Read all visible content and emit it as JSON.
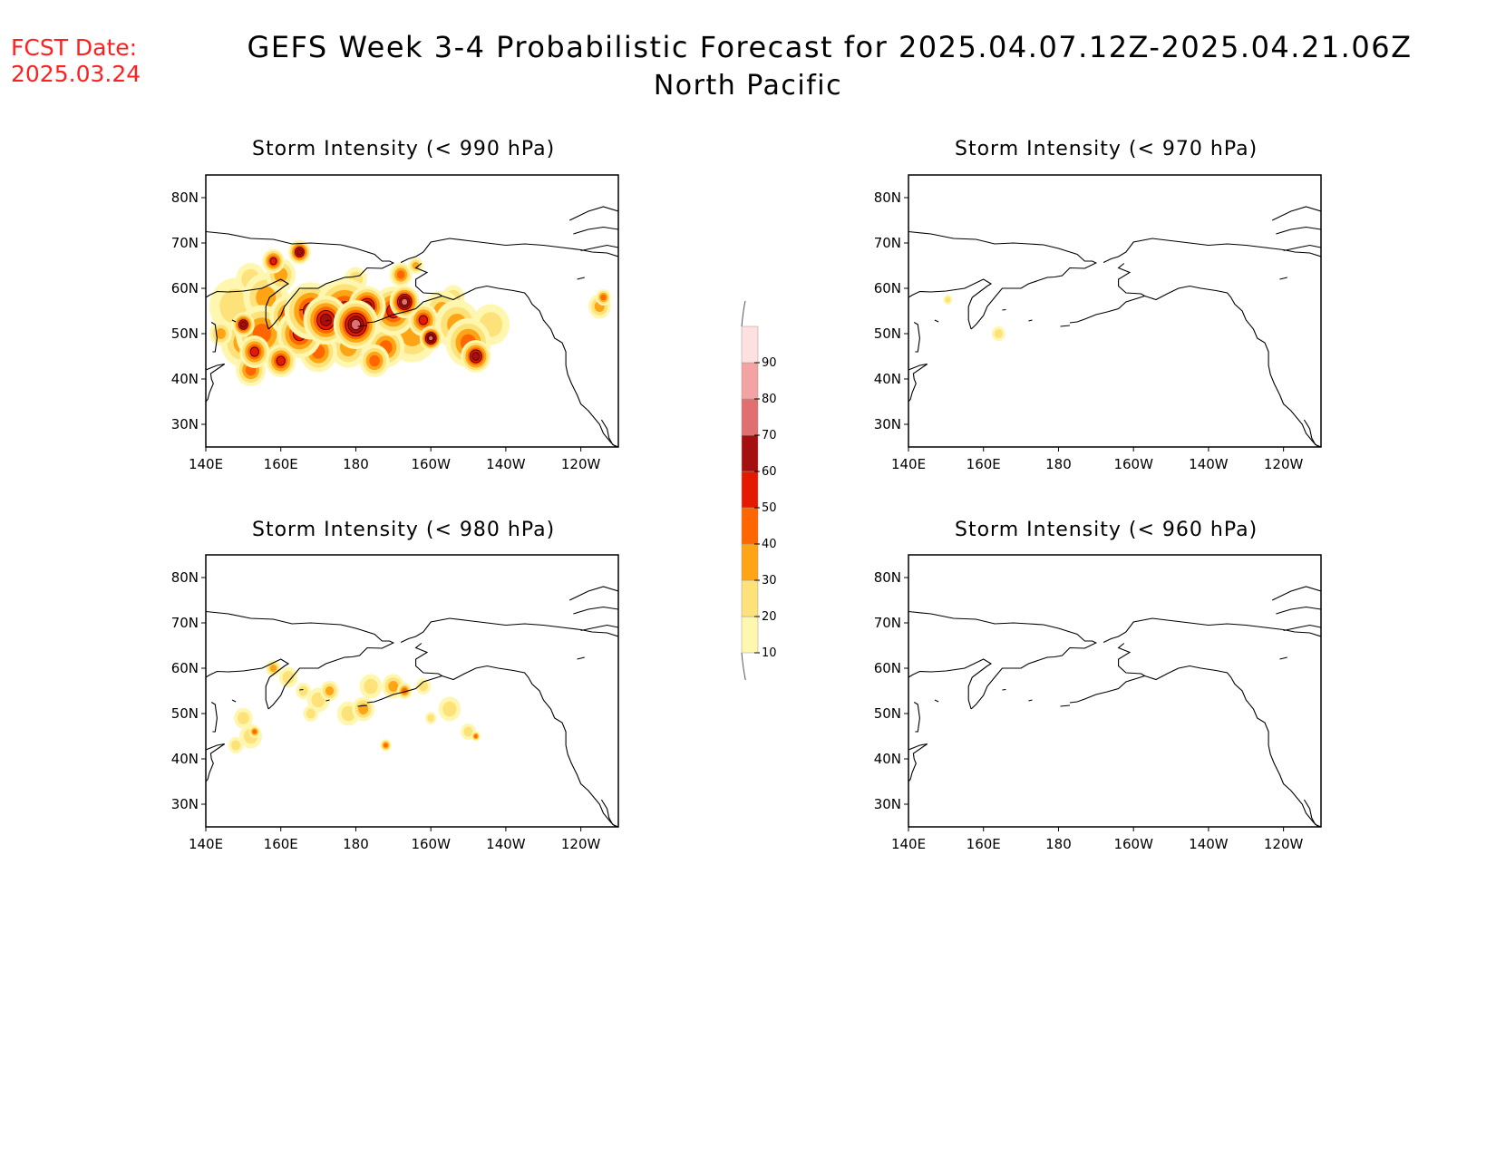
{
  "header": {
    "fcst_label": "FCST Date:",
    "fcst_date": "2025.03.24",
    "title": "GEFS Week 3-4 Probabilistic Forecast for 2025.04.07.12Z-2025.04.21.06Z",
    "region": "North Pacific"
  },
  "axes": {
    "lon_ticks": [
      "140E",
      "160E",
      "180",
      "160W",
      "140W",
      "120W"
    ],
    "lat_ticks": [
      "80N",
      "70N",
      "60N",
      "50N",
      "40N",
      "30N"
    ]
  },
  "panels": [
    {
      "id": "p990",
      "title": "Storm Intensity (< 990 hPa)",
      "coverage": "widespread"
    },
    {
      "id": "p970",
      "title": "Storm Intensity (< 970 hPa)",
      "coverage": "minimal"
    },
    {
      "id": "p980",
      "title": "Storm Intensity (< 980 hPa)",
      "coverage": "scattered"
    },
    {
      "id": "p960",
      "title": "Storm Intensity (< 960 hPa)",
      "coverage": "none"
    }
  ],
  "colorbar": {
    "levels": [
      "10",
      "20",
      "30",
      "40",
      "50",
      "60",
      "70",
      "80",
      "90"
    ],
    "colors": [
      "#fff7b0",
      "#fde27a",
      "#fea415",
      "#ff6600",
      "#e41a00",
      "#a50f0f",
      "#e07070",
      "#f4a3a3",
      "#fde0e0"
    ]
  }
}
